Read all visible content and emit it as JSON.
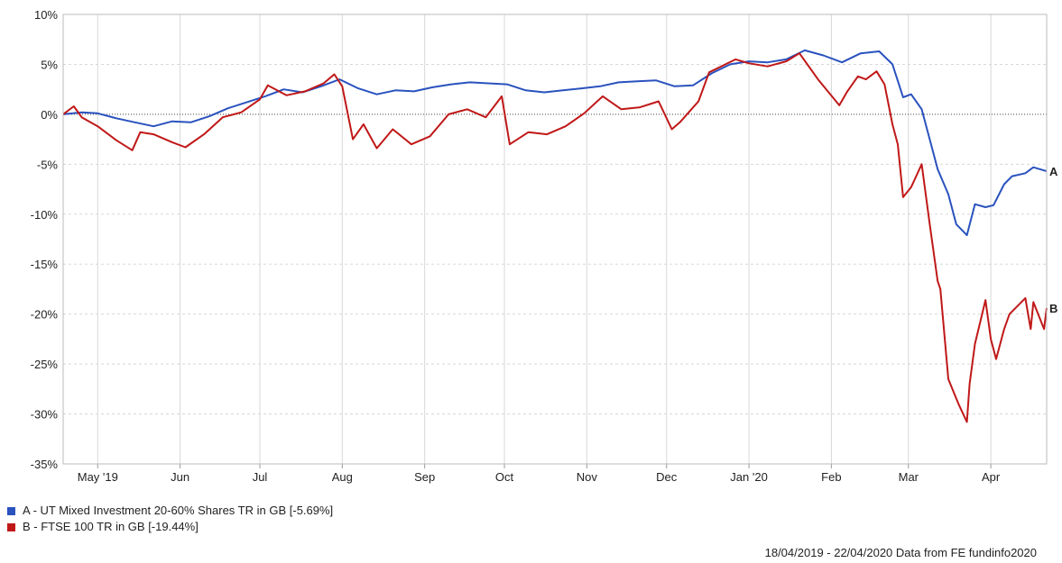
{
  "chart_data": {
    "type": "line",
    "ylim": [
      -35,
      10
    ],
    "y_ticks": [
      10,
      5,
      0,
      -5,
      -10,
      -15,
      -20,
      -25,
      -30,
      -35
    ],
    "y_tick_labels": [
      "10%",
      "5%",
      "0%",
      "-5%",
      "-10%",
      "-15%",
      "-20%",
      "-25%",
      "-30%",
      "-35%"
    ],
    "x_range": [
      "2019-04-18",
      "2020-04-22"
    ],
    "x_ticks": [
      "2019-05-01",
      "2019-06-01",
      "2019-07-01",
      "2019-08-01",
      "2019-09-01",
      "2019-10-01",
      "2019-11-01",
      "2019-12-01",
      "2020-01-01",
      "2020-02-01",
      "2020-03-01",
      "2020-04-01"
    ],
    "x_tick_labels": [
      "May '19",
      "Jun",
      "Jul",
      "Aug",
      "Sep",
      "Oct",
      "Nov",
      "Dec",
      "Jan '20",
      "Feb",
      "Mar",
      "Apr"
    ],
    "grid": true,
    "zero_line": "dotted",
    "legend_position": "bottom-left",
    "series": [
      {
        "name": "A - UT Mixed Investment 20-60% Shares TR in GB [-5.69%]",
        "tag": "A",
        "color": "#2a52be",
        "points": [
          [
            "2019-04-18",
            0.0
          ],
          [
            "2019-04-25",
            0.2
          ],
          [
            "2019-05-01",
            0.1
          ],
          [
            "2019-05-08",
            -0.4
          ],
          [
            "2019-05-15",
            -0.8
          ],
          [
            "2019-05-22",
            -1.2
          ],
          [
            "2019-05-29",
            -0.7
          ],
          [
            "2019-06-05",
            -0.8
          ],
          [
            "2019-06-12",
            -0.2
          ],
          [
            "2019-06-19",
            0.6
          ],
          [
            "2019-06-26",
            1.2
          ],
          [
            "2019-07-03",
            1.8
          ],
          [
            "2019-07-10",
            2.5
          ],
          [
            "2019-07-17",
            2.2
          ],
          [
            "2019-07-24",
            2.8
          ],
          [
            "2019-07-31",
            3.5
          ],
          [
            "2019-08-07",
            2.6
          ],
          [
            "2019-08-14",
            2.0
          ],
          [
            "2019-08-21",
            2.4
          ],
          [
            "2019-08-28",
            2.3
          ],
          [
            "2019-09-04",
            2.7
          ],
          [
            "2019-09-11",
            3.0
          ],
          [
            "2019-09-18",
            3.2
          ],
          [
            "2019-09-25",
            3.1
          ],
          [
            "2019-10-02",
            3.0
          ],
          [
            "2019-10-09",
            2.4
          ],
          [
            "2019-10-16",
            2.2
          ],
          [
            "2019-10-23",
            2.4
          ],
          [
            "2019-10-30",
            2.6
          ],
          [
            "2019-11-06",
            2.8
          ],
          [
            "2019-11-13",
            3.2
          ],
          [
            "2019-11-20",
            3.3
          ],
          [
            "2019-11-27",
            3.4
          ],
          [
            "2019-12-04",
            2.8
          ],
          [
            "2019-12-11",
            2.9
          ],
          [
            "2019-12-18",
            4.1
          ],
          [
            "2019-12-25",
            5.0
          ],
          [
            "2020-01-01",
            5.3
          ],
          [
            "2020-01-08",
            5.2
          ],
          [
            "2020-01-15",
            5.5
          ],
          [
            "2020-01-22",
            6.4
          ],
          [
            "2020-01-29",
            5.9
          ],
          [
            "2020-02-05",
            5.2
          ],
          [
            "2020-02-12",
            6.1
          ],
          [
            "2020-02-19",
            6.3
          ],
          [
            "2020-02-24",
            5.0
          ],
          [
            "2020-02-28",
            1.7
          ],
          [
            "2020-03-02",
            2.0
          ],
          [
            "2020-03-06",
            0.5
          ],
          [
            "2020-03-09",
            -2.5
          ],
          [
            "2020-03-12",
            -5.5
          ],
          [
            "2020-03-16",
            -8.0
          ],
          [
            "2020-03-19",
            -11.0
          ],
          [
            "2020-03-23",
            -12.1
          ],
          [
            "2020-03-26",
            -9.0
          ],
          [
            "2020-03-30",
            -9.3
          ],
          [
            "2020-04-02",
            -9.1
          ],
          [
            "2020-04-06",
            -7.0
          ],
          [
            "2020-04-09",
            -6.2
          ],
          [
            "2020-04-14",
            -5.9
          ],
          [
            "2020-04-17",
            -5.3
          ],
          [
            "2020-04-22",
            -5.7
          ]
        ]
      },
      {
        "name": "B - FTSE 100 TR in GB [-19.44%]",
        "tag": "B",
        "color": "#c01818",
        "points": [
          [
            "2019-04-18",
            0.0
          ],
          [
            "2019-04-22",
            0.8
          ],
          [
            "2019-04-25",
            -0.3
          ],
          [
            "2019-05-01",
            -1.2
          ],
          [
            "2019-05-08",
            -2.6
          ],
          [
            "2019-05-14",
            -3.6
          ],
          [
            "2019-05-17",
            -1.8
          ],
          [
            "2019-05-22",
            -2.0
          ],
          [
            "2019-05-29",
            -2.8
          ],
          [
            "2019-06-03",
            -3.3
          ],
          [
            "2019-06-10",
            -2.0
          ],
          [
            "2019-06-17",
            -0.3
          ],
          [
            "2019-06-24",
            0.2
          ],
          [
            "2019-07-01",
            1.5
          ],
          [
            "2019-07-04",
            2.9
          ],
          [
            "2019-07-11",
            1.9
          ],
          [
            "2019-07-18",
            2.3
          ],
          [
            "2019-07-25",
            3.1
          ],
          [
            "2019-07-29",
            4.0
          ],
          [
            "2019-08-01",
            2.8
          ],
          [
            "2019-08-05",
            -2.5
          ],
          [
            "2019-08-09",
            -1.0
          ],
          [
            "2019-08-14",
            -3.4
          ],
          [
            "2019-08-20",
            -1.5
          ],
          [
            "2019-08-27",
            -3.0
          ],
          [
            "2019-09-03",
            -2.2
          ],
          [
            "2019-09-10",
            0.0
          ],
          [
            "2019-09-17",
            0.5
          ],
          [
            "2019-09-24",
            -0.3
          ],
          [
            "2019-09-30",
            1.8
          ],
          [
            "2019-10-03",
            -3.0
          ],
          [
            "2019-10-10",
            -1.8
          ],
          [
            "2019-10-17",
            -2.0
          ],
          [
            "2019-10-24",
            -1.2
          ],
          [
            "2019-10-31",
            0.1
          ],
          [
            "2019-11-07",
            1.8
          ],
          [
            "2019-11-14",
            0.5
          ],
          [
            "2019-11-21",
            0.7
          ],
          [
            "2019-11-28",
            1.3
          ],
          [
            "2019-12-03",
            -1.5
          ],
          [
            "2019-12-06",
            -0.8
          ],
          [
            "2019-12-13",
            1.3
          ],
          [
            "2019-12-17",
            4.2
          ],
          [
            "2019-12-27",
            5.5
          ],
          [
            "2020-01-01",
            5.1
          ],
          [
            "2020-01-08",
            4.8
          ],
          [
            "2020-01-15",
            5.3
          ],
          [
            "2020-01-20",
            6.1
          ],
          [
            "2020-01-27",
            3.5
          ],
          [
            "2020-01-31",
            2.2
          ],
          [
            "2020-02-04",
            0.9
          ],
          [
            "2020-02-07",
            2.3
          ],
          [
            "2020-02-11",
            3.8
          ],
          [
            "2020-02-14",
            3.5
          ],
          [
            "2020-02-18",
            4.3
          ],
          [
            "2020-02-21",
            3.0
          ],
          [
            "2020-02-24",
            -1.0
          ],
          [
            "2020-02-26",
            -3.0
          ],
          [
            "2020-02-28",
            -8.3
          ],
          [
            "2020-03-02",
            -7.3
          ],
          [
            "2020-03-06",
            -5.0
          ],
          [
            "2020-03-09",
            -11.0
          ],
          [
            "2020-03-12",
            -16.7
          ],
          [
            "2020-03-13",
            -17.5
          ],
          [
            "2020-03-16",
            -26.5
          ],
          [
            "2020-03-18",
            -27.8
          ],
          [
            "2020-03-20",
            -29.1
          ],
          [
            "2020-03-23",
            -30.8
          ],
          [
            "2020-03-24",
            -27.0
          ],
          [
            "2020-03-26",
            -23.0
          ],
          [
            "2020-03-30",
            -18.6
          ],
          [
            "2020-04-01",
            -22.5
          ],
          [
            "2020-04-03",
            -24.5
          ],
          [
            "2020-04-06",
            -21.5
          ],
          [
            "2020-04-08",
            -20.0
          ],
          [
            "2020-04-14",
            -18.4
          ],
          [
            "2020-04-15",
            -20.0
          ],
          [
            "2020-04-16",
            -21.5
          ],
          [
            "2020-04-17",
            -18.8
          ],
          [
            "2020-04-21",
            -21.5
          ],
          [
            "2020-04-22",
            -19.4
          ]
        ]
      }
    ]
  },
  "legend": {
    "items": [
      {
        "label": "A - UT Mixed Investment 20-60% Shares TR in GB [-5.69%]",
        "color": "#2a52be"
      },
      {
        "label": "B - FTSE 100 TR in GB [-19.44%]",
        "color": "#c01818"
      }
    ]
  },
  "footer": {
    "source": "18/04/2019 - 22/04/2020 Data from FE fundinfo2020"
  }
}
